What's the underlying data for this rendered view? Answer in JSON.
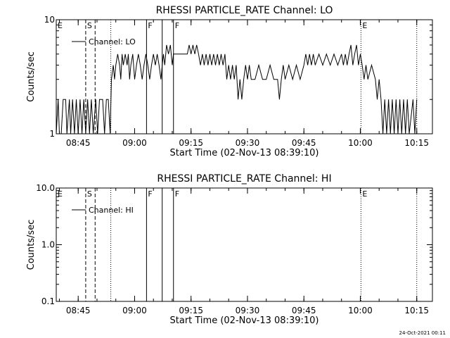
{
  "footer": {
    "timestamp": "24-Oct-2021 00:11"
  },
  "chart_data": [
    {
      "type": "line",
      "title": "RHESSI PARTICLE_RATE Channel: LO",
      "xlabel": "Start Time (02-Nov-13 08:39:10)",
      "ylabel": "Counts/sec",
      "yscale": "log",
      "xlim": [
        "08:39:10",
        "10:19:10"
      ],
      "ylim": [
        1,
        10
      ],
      "x_ticks": [
        "08:45",
        "09:00",
        "09:15",
        "09:30",
        "09:45",
        "10:00",
        "10:15"
      ],
      "y_ticks": [
        "1",
        "10"
      ],
      "legend": {
        "label": "Channel: LO",
        "placement": "top-left"
      },
      "grid": false,
      "markers": [
        {
          "time": "08:39:10",
          "label": "E",
          "style": "dotted"
        },
        {
          "time": "08:47:00",
          "label": "S",
          "style": "dashed"
        },
        {
          "time": "08:49:30",
          "label": "",
          "style": "dashed"
        },
        {
          "time": "08:53:40",
          "label": "",
          "style": "dotted"
        },
        {
          "time": "09:03:10",
          "label": "F",
          "style": "solid"
        },
        {
          "time": "09:07:20",
          "label": "",
          "style": "solid"
        },
        {
          "time": "09:10:20",
          "label": "F",
          "style": "solid"
        },
        {
          "time": "10:00:10",
          "label": "E",
          "style": "dotted"
        },
        {
          "time": "10:15:00",
          "label": "",
          "style": "dotted"
        }
      ],
      "series": [
        {
          "name": "Channel: LO",
          "points": [
            [
              "08:39:10",
              1
            ],
            [
              "08:39:40",
              2
            ],
            [
              "08:40:00",
              1
            ],
            [
              "08:40:30",
              1
            ],
            [
              "08:41:00",
              2
            ],
            [
              "08:41:40",
              2
            ],
            [
              "08:42:00",
              1
            ],
            [
              "08:42:40",
              2
            ],
            [
              "08:43:00",
              1
            ],
            [
              "08:43:30",
              2
            ],
            [
              "08:44:00",
              1
            ],
            [
              "08:44:30",
              2
            ],
            [
              "08:45:00",
              1
            ],
            [
              "08:45:30",
              2
            ],
            [
              "08:46:00",
              1
            ],
            [
              "08:46:30",
              2
            ],
            [
              "08:47:00",
              1
            ],
            [
              "08:47:30",
              2
            ],
            [
              "08:48:00",
              1
            ],
            [
              "08:48:30",
              2
            ],
            [
              "08:49:00",
              1
            ],
            [
              "08:49:40",
              2
            ],
            [
              "08:50:10",
              1
            ],
            [
              "08:50:40",
              2
            ],
            [
              "08:51:30",
              2
            ],
            [
              "08:52:00",
              1
            ],
            [
              "08:52:30",
              2
            ],
            [
              "08:53:00",
              2
            ],
            [
              "08:53:30",
              1
            ],
            [
              "08:53:50",
              3
            ],
            [
              "08:54:20",
              4
            ],
            [
              "08:54:40",
              3
            ],
            [
              "08:55:00",
              4
            ],
            [
              "08:55:30",
              5
            ],
            [
              "08:56:00",
              4
            ],
            [
              "08:56:20",
              3
            ],
            [
              "08:56:40",
              5
            ],
            [
              "08:57:00",
              4
            ],
            [
              "08:57:30",
              5
            ],
            [
              "08:58:00",
              4
            ],
            [
              "08:58:20",
              5
            ],
            [
              "08:58:40",
              3
            ],
            [
              "08:59:00",
              4
            ],
            [
              "08:59:30",
              5
            ],
            [
              "09:00:00",
              3
            ],
            [
              "09:00:30",
              4
            ],
            [
              "09:01:00",
              5
            ],
            [
              "09:01:30",
              4
            ],
            [
              "09:02:00",
              3
            ],
            [
              "09:02:30",
              4
            ],
            [
              "09:03:00",
              5
            ],
            [
              "09:03:30",
              4
            ],
            [
              "09:04:00",
              3
            ],
            [
              "09:04:30",
              4
            ],
            [
              "09:05:00",
              5
            ],
            [
              "09:05:30",
              4
            ],
            [
              "09:06:00",
              5
            ],
            [
              "09:06:30",
              4
            ],
            [
              "09:07:00",
              3
            ],
            [
              "09:07:20",
              4
            ],
            [
              "09:07:40",
              5
            ],
            [
              "09:08:00",
              4
            ],
            [
              "09:08:30",
              6
            ],
            [
              "09:09:00",
              5
            ],
            [
              "09:09:30",
              6
            ],
            [
              "09:10:00",
              4
            ],
            [
              "09:10:20",
              5
            ],
            [
              "09:14:00",
              5
            ],
            [
              "09:14:30",
              6
            ],
            [
              "09:15:00",
              5
            ],
            [
              "09:15:30",
              6
            ],
            [
              "09:16:00",
              5
            ],
            [
              "09:16:30",
              6
            ],
            [
              "09:17:00",
              5
            ],
            [
              "09:17:30",
              4
            ],
            [
              "09:18:00",
              5
            ],
            [
              "09:18:30",
              4
            ],
            [
              "09:19:00",
              5
            ],
            [
              "09:19:30",
              4
            ],
            [
              "09:20:00",
              5
            ],
            [
              "09:20:30",
              4
            ],
            [
              "09:21:00",
              5
            ],
            [
              "09:21:30",
              4
            ],
            [
              "09:22:00",
              5
            ],
            [
              "09:22:30",
              4
            ],
            [
              "09:23:00",
              5
            ],
            [
              "09:23:30",
              4
            ],
            [
              "09:24:00",
              5
            ],
            [
              "09:24:30",
              3
            ],
            [
              "09:25:00",
              4
            ],
            [
              "09:25:30",
              3
            ],
            [
              "09:26:00",
              4
            ],
            [
              "09:26:30",
              3
            ],
            [
              "09:27:00",
              4
            ],
            [
              "09:27:30",
              2
            ],
            [
              "09:28:00",
              3
            ],
            [
              "09:28:30",
              2
            ],
            [
              "09:29:00",
              3
            ],
            [
              "09:29:30",
              4
            ],
            [
              "09:30:00",
              3
            ],
            [
              "09:30:30",
              4
            ],
            [
              "09:31:00",
              3
            ],
            [
              "09:32:00",
              3
            ],
            [
              "09:33:00",
              4
            ],
            [
              "09:34:00",
              3
            ],
            [
              "09:35:00",
              3
            ],
            [
              "09:36:00",
              4
            ],
            [
              "09:37:00",
              3
            ],
            [
              "09:38:00",
              3
            ],
            [
              "09:38:30",
              2
            ],
            [
              "09:39:00",
              3
            ],
            [
              "09:39:30",
              4
            ],
            [
              "09:40:00",
              3
            ],
            [
              "09:41:00",
              4
            ],
            [
              "09:42:00",
              3
            ],
            [
              "09:43:00",
              4
            ],
            [
              "09:44:00",
              3
            ],
            [
              "09:45:00",
              4
            ],
            [
              "09:45:30",
              5
            ],
            [
              "09:46:00",
              4
            ],
            [
              "09:46:30",
              5
            ],
            [
              "09:47:00",
              4
            ],
            [
              "09:47:30",
              5
            ],
            [
              "09:48:00",
              4
            ],
            [
              "09:49:00",
              5
            ],
            [
              "09:50:00",
              4
            ],
            [
              "09:51:00",
              5
            ],
            [
              "09:52:00",
              4
            ],
            [
              "09:53:00",
              5
            ],
            [
              "09:54:00",
              4
            ],
            [
              "09:55:00",
              5
            ],
            [
              "09:55:30",
              4
            ],
            [
              "09:56:00",
              5
            ],
            [
              "09:56:30",
              4
            ],
            [
              "09:57:00",
              5
            ],
            [
              "09:57:30",
              6
            ],
            [
              "09:58:00",
              4
            ],
            [
              "09:58:30",
              5
            ],
            [
              "09:59:00",
              6
            ],
            [
              "09:59:30",
              4
            ],
            [
              "10:00:00",
              5
            ],
            [
              "10:00:30",
              4
            ],
            [
              "10:01:00",
              3
            ],
            [
              "10:01:30",
              4
            ],
            [
              "10:02:00",
              3
            ],
            [
              "10:03:00",
              4
            ],
            [
              "10:04:00",
              3
            ],
            [
              "10:04:30",
              2
            ],
            [
              "10:05:00",
              3
            ],
            [
              "10:05:30",
              2
            ],
            [
              "10:06:00",
              1
            ],
            [
              "10:06:30",
              2
            ],
            [
              "10:07:00",
              1
            ],
            [
              "10:07:30",
              2
            ],
            [
              "10:08:00",
              1
            ],
            [
              "10:08:30",
              2
            ],
            [
              "10:09:00",
              1
            ],
            [
              "10:09:30",
              2
            ],
            [
              "10:10:00",
              1
            ],
            [
              "10:10:30",
              2
            ],
            [
              "10:11:00",
              1
            ],
            [
              "10:11:30",
              2
            ],
            [
              "10:12:00",
              1
            ],
            [
              "10:12:30",
              2
            ],
            [
              "10:13:00",
              1
            ],
            [
              "10:14:00",
              2
            ],
            [
              "10:14:30",
              1
            ],
            [
              "10:15:00",
              2
            ]
          ]
        }
      ]
    },
    {
      "type": "line",
      "title": "RHESSI PARTICLE_RATE Channel: HI",
      "xlabel": "Start Time (02-Nov-13 08:39:10)",
      "ylabel": "Counts/sec",
      "yscale": "log",
      "xlim": [
        "08:39:10",
        "10:19:10"
      ],
      "ylim": [
        0.1,
        10
      ],
      "x_ticks": [
        "08:45",
        "09:00",
        "09:15",
        "09:30",
        "09:45",
        "10:00",
        "10:15"
      ],
      "y_ticks": [
        "0.1",
        "1.0",
        "10.0"
      ],
      "legend": {
        "label": "Channel: HI",
        "placement": "top-left"
      },
      "grid": false,
      "markers": [
        {
          "time": "08:39:10",
          "label": "E",
          "style": "dotted"
        },
        {
          "time": "08:47:00",
          "label": "S",
          "style": "dashed"
        },
        {
          "time": "08:49:30",
          "label": "",
          "style": "dashed"
        },
        {
          "time": "08:53:40",
          "label": "",
          "style": "dotted"
        },
        {
          "time": "09:03:10",
          "label": "F",
          "style": "solid"
        },
        {
          "time": "09:07:20",
          "label": "",
          "style": "solid"
        },
        {
          "time": "09:10:20",
          "label": "F",
          "style": "solid"
        },
        {
          "time": "10:00:10",
          "label": "E",
          "style": "dotted"
        },
        {
          "time": "10:15:00",
          "label": "",
          "style": "dotted"
        }
      ],
      "series": [
        {
          "name": "Channel: HI",
          "points": []
        }
      ]
    }
  ]
}
